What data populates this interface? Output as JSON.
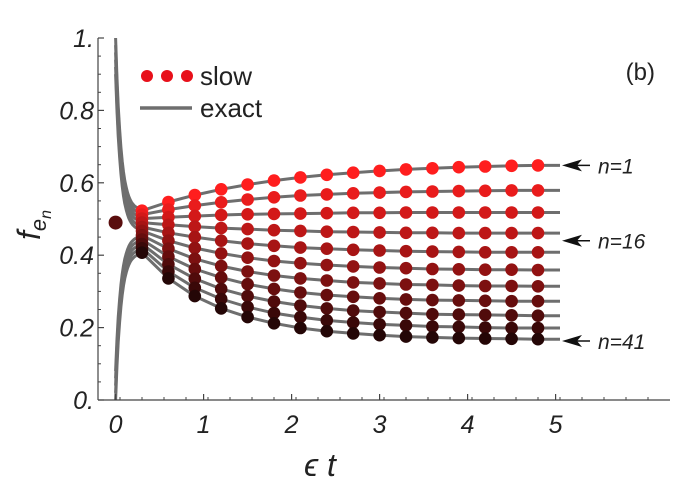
{
  "chart_data": {
    "type": "line",
    "panel_label": "(b)",
    "title": "",
    "xlabel": "ϵ t",
    "ylabel_main": "f",
    "ylabel_sub": "e",
    "ylabel_subsub": "n",
    "xlim": [
      -0.2,
      6.3
    ],
    "ylim": [
      0,
      1
    ],
    "x_ticks": [
      "0",
      "1",
      "2",
      "3",
      "4",
      "5"
    ],
    "x_tick_values": [
      0,
      1,
      2,
      3,
      4,
      5
    ],
    "y_ticks": [
      "0.",
      "0.2",
      "0.4",
      "0.6",
      "0.8",
      "1."
    ],
    "y_tick_values": [
      0,
      0.2,
      0.4,
      0.6,
      0.8,
      1.0
    ],
    "legend": {
      "placement": "top-left",
      "entries": [
        {
          "label": "slow",
          "style": "markers",
          "color": "#e8101a"
        },
        {
          "label": "exact",
          "style": "line",
          "color": "#6e6e6e"
        }
      ]
    },
    "colors": {
      "exact_line": "#6e6e6e",
      "slow_start": "#ff1e1e",
      "slow_end": "#240606",
      "initial_point": "#5a0e0e"
    },
    "initial_point": {
      "x": 0,
      "y": 0.49
    },
    "line_x_end": 5.05,
    "marker_x": [
      0.3,
      0.6,
      0.9,
      1.2,
      1.5,
      1.8,
      2.1,
      2.4,
      2.7,
      3.0,
      3.3,
      3.6,
      3.9,
      4.2,
      4.5,
      4.8
    ],
    "series": [
      {
        "values": [
          0.523,
          0.547,
          0.566,
          0.582,
          0.595,
          0.606,
          0.615,
          0.622,
          0.628,
          0.633,
          0.637,
          0.64,
          0.643,
          0.645,
          0.647,
          0.648
        ]
      },
      {
        "values": [
          0.512,
          0.526,
          0.537,
          0.546,
          0.554,
          0.56,
          0.565,
          0.568,
          0.571,
          0.573,
          0.575,
          0.576,
          0.577,
          0.578,
          0.579,
          0.579
        ]
      },
      {
        "values": [
          0.501,
          0.505,
          0.508,
          0.511,
          0.513,
          0.514,
          0.515,
          0.516,
          0.517,
          0.517,
          0.518,
          0.518,
          0.518,
          0.518,
          0.518,
          0.518
        ]
      },
      {
        "values": [
          0.49,
          0.484,
          0.479,
          0.475,
          0.472,
          0.469,
          0.467,
          0.465,
          0.464,
          0.463,
          0.462,
          0.462,
          0.461,
          0.461,
          0.461,
          0.461
        ]
      },
      {
        "values": [
          0.478,
          0.462,
          0.45,
          0.44,
          0.432,
          0.426,
          0.421,
          0.418,
          0.415,
          0.413,
          0.411,
          0.41,
          0.409,
          0.408,
          0.408,
          0.408
        ]
      },
      {
        "values": [
          0.467,
          0.44,
          0.42,
          0.405,
          0.393,
          0.384,
          0.378,
          0.373,
          0.369,
          0.366,
          0.364,
          0.362,
          0.361,
          0.36,
          0.36,
          0.359
        ]
      },
      {
        "values": [
          0.455,
          0.418,
          0.39,
          0.37,
          0.355,
          0.344,
          0.336,
          0.33,
          0.325,
          0.322,
          0.319,
          0.318,
          0.316,
          0.315,
          0.315,
          0.314
        ]
      },
      {
        "values": [
          0.443,
          0.396,
          0.362,
          0.338,
          0.32,
          0.307,
          0.297,
          0.29,
          0.285,
          0.281,
          0.278,
          0.276,
          0.275,
          0.274,
          0.273,
          0.273
        ]
      },
      {
        "values": [
          0.431,
          0.375,
          0.335,
          0.307,
          0.287,
          0.272,
          0.261,
          0.253,
          0.247,
          0.243,
          0.24,
          0.237,
          0.236,
          0.235,
          0.234,
          0.233
        ]
      },
      {
        "values": [
          0.419,
          0.355,
          0.31,
          0.279,
          0.257,
          0.24,
          0.229,
          0.22,
          0.214,
          0.209,
          0.206,
          0.203,
          0.202,
          0.2,
          0.199,
          0.199
        ]
      },
      {
        "values": [
          0.407,
          0.336,
          0.287,
          0.253,
          0.229,
          0.212,
          0.199,
          0.19,
          0.184,
          0.179,
          0.175,
          0.173,
          0.171,
          0.17,
          0.169,
          0.168
        ]
      }
    ],
    "annotations": [
      {
        "text": "n=1",
        "arrow_y": 0.648
      },
      {
        "text": "n=16",
        "arrow_y": 0.44
      },
      {
        "text": "n=41",
        "arrow_y": 0.163
      }
    ]
  }
}
